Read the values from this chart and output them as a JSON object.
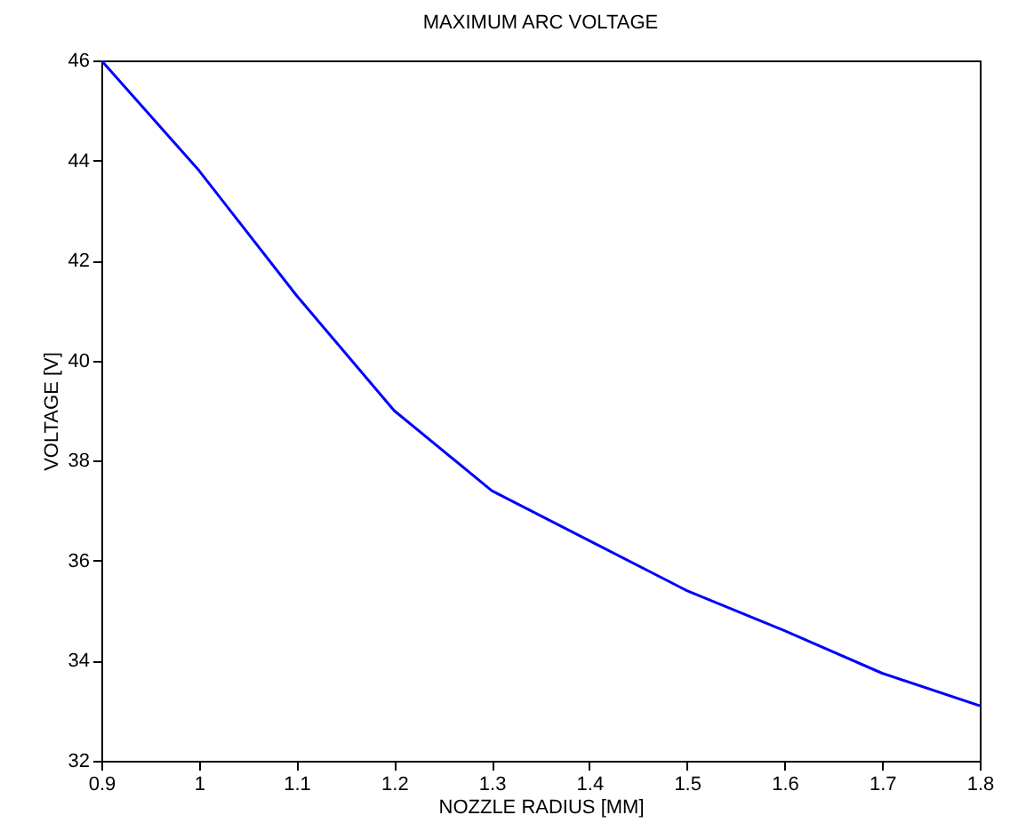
{
  "chart_data": {
    "type": "line",
    "title": "MAXIMUM ARC VOLTAGE",
    "xlabel": "NOZZLE RADIUS [MM]",
    "ylabel": "VOLTAGE [V]",
    "x": [
      0.9,
      1.0,
      1.1,
      1.2,
      1.3,
      1.4,
      1.5,
      1.6,
      1.7,
      1.8
    ],
    "series": [
      {
        "color": "#0000ff",
        "values": [
          46.0,
          43.8,
          41.3,
          39.0,
          37.4,
          36.4,
          35.4,
          34.6,
          33.75,
          33.1
        ]
      }
    ],
    "xlim": [
      0.9,
      1.8
    ],
    "xticks": [
      0.9,
      1,
      1.1,
      1.2,
      1.3,
      1.4,
      1.5,
      1.6,
      1.7,
      1.8
    ],
    "ylim": [
      32,
      46
    ],
    "yticks": [
      32,
      34,
      36,
      38,
      40,
      42,
      44,
      46
    ],
    "grid": false,
    "marker": "none",
    "line_style": "solid"
  }
}
